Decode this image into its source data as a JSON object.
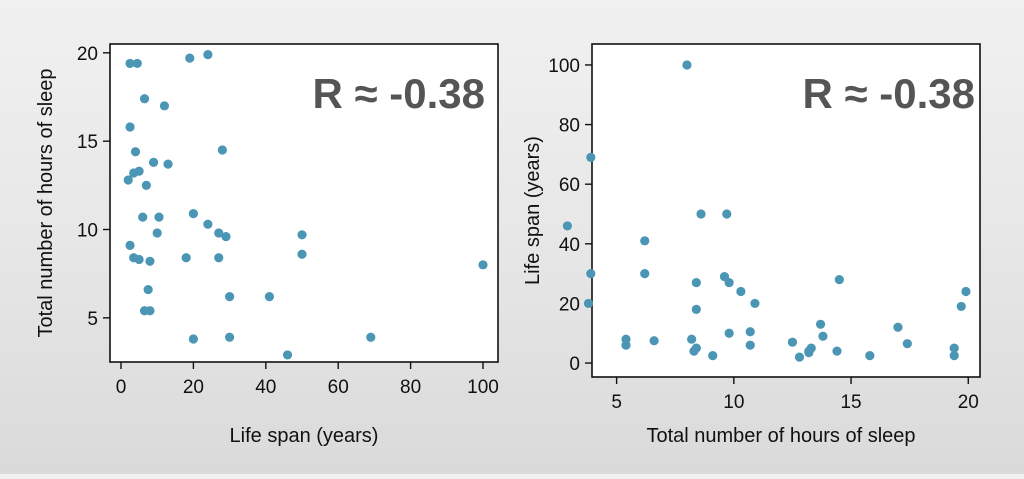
{
  "point_color": "#4a96b4",
  "chart_data": [
    {
      "type": "scatter",
      "xlabel": "Life span (years)",
      "ylabel": "Total number of hours of sleep",
      "annotation": "R ≈ -0.38",
      "xlim": [
        0,
        100
      ],
      "ylim": [
        2.5,
        20.5
      ],
      "xticks": [
        0,
        20,
        40,
        60,
        80,
        100
      ],
      "yticks": [
        5,
        10,
        15,
        20
      ],
      "grid": false,
      "points": [
        {
          "x": 2.5,
          "y": 19.4
        },
        {
          "x": 4.5,
          "y": 19.4
        },
        {
          "x": 19,
          "y": 19.7
        },
        {
          "x": 24,
          "y": 19.9
        },
        {
          "x": 6.5,
          "y": 17.4
        },
        {
          "x": 12,
          "y": 17.0
        },
        {
          "x": 2.5,
          "y": 15.8
        },
        {
          "x": 4,
          "y": 14.4
        },
        {
          "x": 28,
          "y": 14.5
        },
        {
          "x": 9,
          "y": 13.8
        },
        {
          "x": 13,
          "y": 13.7
        },
        {
          "x": 3.5,
          "y": 13.2
        },
        {
          "x": 5,
          "y": 13.3
        },
        {
          "x": 2,
          "y": 12.8
        },
        {
          "x": 7,
          "y": 12.5
        },
        {
          "x": 6,
          "y": 10.7
        },
        {
          "x": 10.5,
          "y": 10.7
        },
        {
          "x": 20,
          "y": 10.9
        },
        {
          "x": 24,
          "y": 10.3
        },
        {
          "x": 27,
          "y": 9.8
        },
        {
          "x": 29,
          "y": 9.6
        },
        {
          "x": 2.5,
          "y": 9.1
        },
        {
          "x": 10,
          "y": 9.8
        },
        {
          "x": 50,
          "y": 9.7
        },
        {
          "x": 50,
          "y": 8.6
        },
        {
          "x": 3.5,
          "y": 8.4
        },
        {
          "x": 5,
          "y": 8.3
        },
        {
          "x": 8,
          "y": 8.2
        },
        {
          "x": 18,
          "y": 8.4
        },
        {
          "x": 27,
          "y": 8.4
        },
        {
          "x": 100,
          "y": 8.0
        },
        {
          "x": 7.5,
          "y": 6.6
        },
        {
          "x": 30,
          "y": 6.2
        },
        {
          "x": 41,
          "y": 6.2
        },
        {
          "x": 6.5,
          "y": 5.4
        },
        {
          "x": 8,
          "y": 5.4
        },
        {
          "x": 20,
          "y": 3.8
        },
        {
          "x": 30,
          "y": 3.9
        },
        {
          "x": 69,
          "y": 3.9
        },
        {
          "x": 46,
          "y": 2.9
        }
      ]
    },
    {
      "type": "scatter",
      "xlabel": "Total number of hours of sleep",
      "ylabel": "Life span (years)",
      "annotation": "R ≈ -0.38",
      "xlim": [
        2.5,
        20.5
      ],
      "ylim": [
        -3,
        103
      ],
      "xticks": [
        5,
        10,
        15,
        20
      ],
      "yticks": [
        0,
        20,
        40,
        60,
        80,
        100
      ],
      "grid": false,
      "points": [
        {
          "x": 8.0,
          "y": 100
        },
        {
          "x": 3.9,
          "y": 69
        },
        {
          "x": 2.9,
          "y": 46
        },
        {
          "x": 6.2,
          "y": 41
        },
        {
          "x": 8.6,
          "y": 50
        },
        {
          "x": 9.7,
          "y": 50
        },
        {
          "x": 3.9,
          "y": 30
        },
        {
          "x": 6.2,
          "y": 30
        },
        {
          "x": 3.8,
          "y": 20
        },
        {
          "x": 8.4,
          "y": 27
        },
        {
          "x": 9.6,
          "y": 29
        },
        {
          "x": 9.8,
          "y": 27
        },
        {
          "x": 10.3,
          "y": 24
        },
        {
          "x": 10.9,
          "y": 20
        },
        {
          "x": 14.5,
          "y": 28
        },
        {
          "x": 8.4,
          "y": 18
        },
        {
          "x": 19.9,
          "y": 24
        },
        {
          "x": 19.7,
          "y": 19
        },
        {
          "x": 17.0,
          "y": 12
        },
        {
          "x": 13.7,
          "y": 13
        },
        {
          "x": 13.8,
          "y": 9
        },
        {
          "x": 9.8,
          "y": 10
        },
        {
          "x": 10.7,
          "y": 10.5
        },
        {
          "x": 10.7,
          "y": 6
        },
        {
          "x": 12.5,
          "y": 7
        },
        {
          "x": 5.4,
          "y": 8
        },
        {
          "x": 5.4,
          "y": 6
        },
        {
          "x": 6.6,
          "y": 7.5
        },
        {
          "x": 8.2,
          "y": 8
        },
        {
          "x": 8.4,
          "y": 5
        },
        {
          "x": 8.3,
          "y": 4
        },
        {
          "x": 9.1,
          "y": 2.5
        },
        {
          "x": 12.8,
          "y": 2
        },
        {
          "x": 13.2,
          "y": 3.5
        },
        {
          "x": 13.3,
          "y": 5
        },
        {
          "x": 13.2,
          "y": 4
        },
        {
          "x": 14.4,
          "y": 4
        },
        {
          "x": 15.8,
          "y": 2.5
        },
        {
          "x": 17.4,
          "y": 6.5
        },
        {
          "x": 19.4,
          "y": 5
        },
        {
          "x": 19.4,
          "y": 2.5
        }
      ]
    }
  ]
}
